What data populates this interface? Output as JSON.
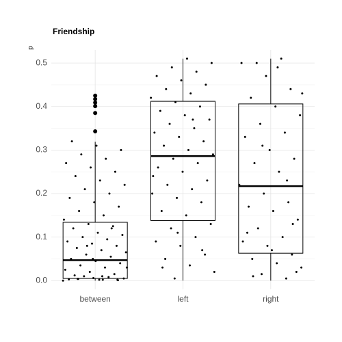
{
  "chart_data": {
    "type": "box",
    "title": "Friendship",
    "y_label": "p",
    "categories": [
      "between",
      "left",
      "right"
    ],
    "ylim": [
      -0.02,
      0.53
    ],
    "yticks": [
      {
        "value": 0,
        "label": "0.0"
      },
      0.1,
      0.2,
      0.3,
      0.4,
      0.5
    ],
    "y_minor_ticks": [
      0.05,
      0.15,
      0.25,
      0.35,
      0.45
    ],
    "grid": true,
    "color": "#000000",
    "boxes": [
      {
        "whisker_low": 0,
        "q1": 0.005,
        "median": 0.047,
        "q3": 0.134,
        "whisker_high": 0.319,
        "outliers": [
          0.343,
          0.385,
          0.401,
          0.409,
          0.417,
          0.425
        ],
        "points": [
          0,
          0.002,
          0.004,
          0.001,
          0.006,
          0.003,
          0.008,
          0.01,
          0.005,
          0.002,
          0.012,
          0.015,
          0.02,
          0.025,
          0.03,
          0.035,
          0.04,
          0.045,
          0.05,
          0.055,
          0.06,
          0.065,
          0.07,
          0.075,
          0.08,
          0.085,
          0.09,
          0.095,
          0.1,
          0.105,
          0.11,
          0.12,
          0.125,
          0.13,
          0.14,
          0.15,
          0.16,
          0.17,
          0.18,
          0.19,
          0.2,
          0.21,
          0.22,
          0.23,
          0.24,
          0.25,
          0.26,
          0.27,
          0.28,
          0.29,
          0.3,
          0.31,
          0.32,
          0.12,
          0.08,
          0.03,
          0.01,
          0.004,
          0.002,
          0.05
        ]
      },
      {
        "whisker_low": 0,
        "q1": 0.138,
        "median": 0.286,
        "q3": 0.412,
        "whisker_high": 0.51,
        "outliers": [],
        "points": [
          0.005,
          0.02,
          0.035,
          0.05,
          0.06,
          0.08,
          0.09,
          0.1,
          0.12,
          0.13,
          0.15,
          0.16,
          0.18,
          0.19,
          0.2,
          0.21,
          0.22,
          0.23,
          0.25,
          0.26,
          0.27,
          0.28,
          0.29,
          0.3,
          0.31,
          0.32,
          0.33,
          0.34,
          0.35,
          0.36,
          0.37,
          0.38,
          0.39,
          0.4,
          0.41,
          0.42,
          0.43,
          0.44,
          0.45,
          0.46,
          0.47,
          0.48,
          0.49,
          0.5,
          0.51,
          0.03,
          0.07,
          0.11,
          0.24,
          0.37
        ]
      },
      {
        "whisker_low": 0,
        "q1": 0.063,
        "median": 0.217,
        "q3": 0.406,
        "whisker_high": 0.51,
        "outliers": [],
        "points": [
          0.005,
          0.015,
          0.03,
          0.04,
          0.05,
          0.06,
          0.08,
          0.09,
          0.1,
          0.12,
          0.14,
          0.16,
          0.17,
          0.18,
          0.2,
          0.22,
          0.25,
          0.27,
          0.28,
          0.3,
          0.33,
          0.34,
          0.36,
          0.38,
          0.4,
          0.42,
          0.44,
          0.47,
          0.5,
          0.51,
          0.5,
          0.02,
          0.07,
          0.11,
          0.23,
          0.31,
          0.43,
          0.49,
          0.01,
          0.13
        ]
      }
    ]
  }
}
